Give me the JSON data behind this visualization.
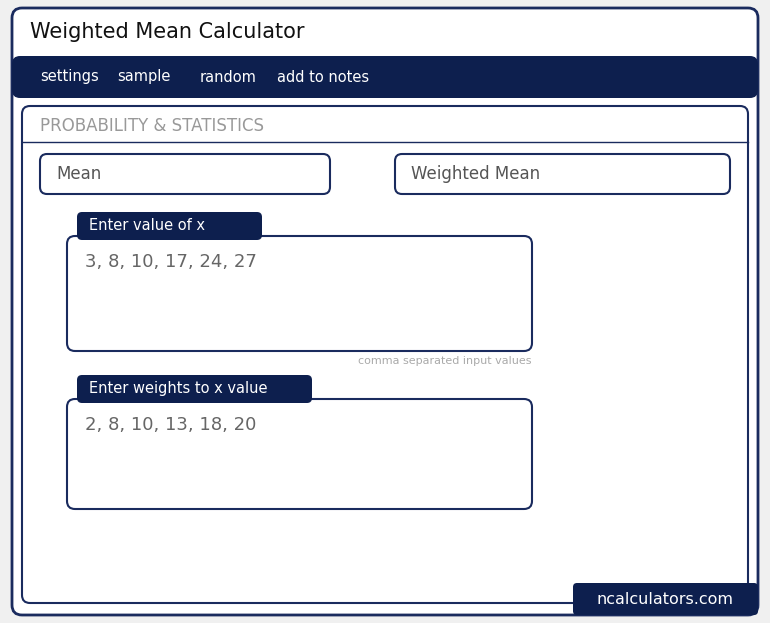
{
  "title": "Weighted Mean Calculator",
  "nav_items": [
    "settings",
    "sample",
    "random",
    "add to notes"
  ],
  "section_title": "PROBABILITY & STATISTICS",
  "button1": "Mean",
  "button2": "Weighted Mean",
  "label1": "Enter value of x",
  "input1": "3, 8, 10, 17, 24, 27",
  "hint1": "comma separated input values",
  "label2": "Enter weights to x value",
  "input2": "2, 8, 10, 13, 18, 20",
  "watermark": "ncalculators.com",
  "page_bg": "#f0f0f0",
  "card_bg": "#ffffff",
  "outer_border_color": "#1a2b5e",
  "nav_bg": "#0d1f4e",
  "nav_text_color": "#ffffff",
  "section_text_color": "#999999",
  "button_border_color": "#1a2b5e",
  "button_text_color": "#555555",
  "label_bg": "#0d1f4e",
  "label_text_color": "#ffffff",
  "input_bg": "#ffffff",
  "input_border_color": "#1a2b5e",
  "input_text_color": "#666666",
  "hint_text_color": "#aaaaaa",
  "watermark_bg": "#0d1f4e",
  "watermark_text_color": "#ffffff",
  "title_text_color": "#111111"
}
